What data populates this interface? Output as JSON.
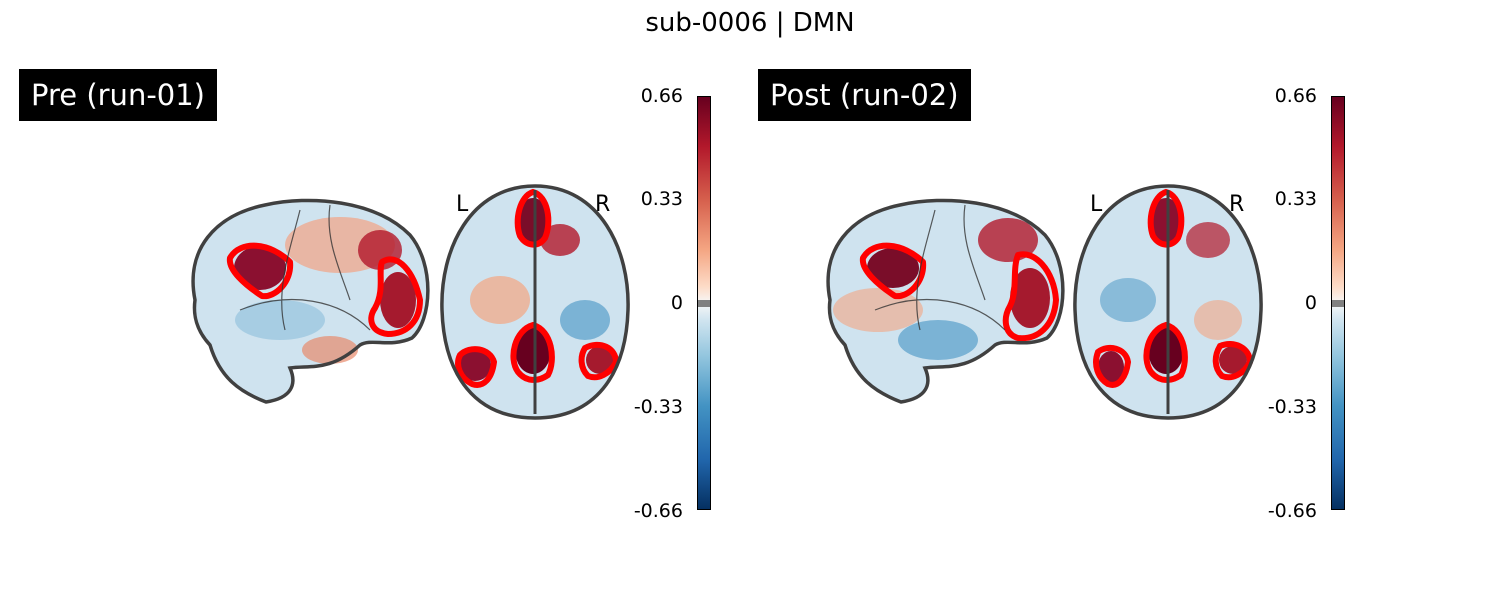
{
  "figure": {
    "title": "sub-0006 | DMN"
  },
  "panels": [
    {
      "title": "Pre (run-01)",
      "axial_left_label": "L",
      "axial_right_label": "R",
      "colorbar": {
        "ticks": [
          "0.66",
          "0.33",
          "0",
          "-0.33",
          "-0.66"
        ],
        "vmin": -0.66,
        "vmax": 0.66,
        "colormap": "RdBu_r"
      }
    },
    {
      "title": "Post (run-02)",
      "axial_left_label": "L",
      "axial_right_label": "R",
      "colorbar": {
        "ticks": [
          "0.66",
          "0.33",
          "0",
          "-0.33",
          "-0.66"
        ],
        "vmin": -0.66,
        "vmax": 0.66,
        "colormap": "RdBu_r"
      }
    }
  ],
  "colors": {
    "roi_outline": "#ff0000",
    "brain_outline": "#404040",
    "positive_max": "#67001f",
    "negative_max": "#053061"
  }
}
